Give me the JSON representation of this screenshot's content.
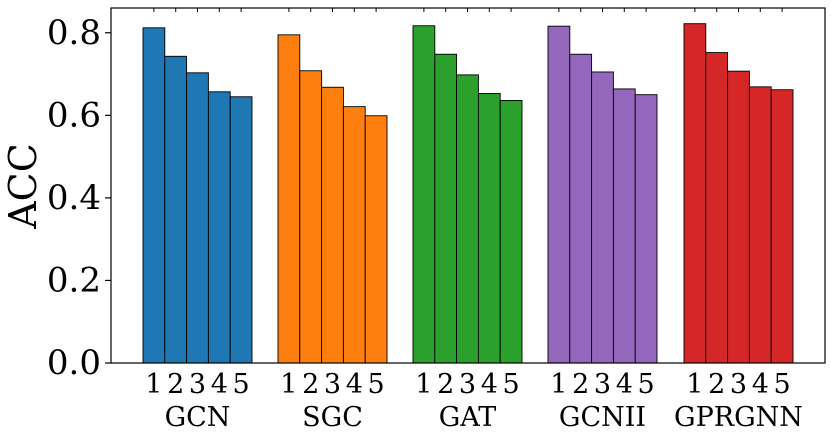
{
  "chart_data": {
    "type": "bar",
    "title": "",
    "ylabel": "ACC",
    "xlabel": "",
    "ylim": [
      0.0,
      0.86
    ],
    "yticks": [
      "0.0",
      "0.2",
      "0.4",
      "0.6",
      "0.8"
    ],
    "yticks_values": [
      0.0,
      0.2,
      0.4,
      0.6,
      0.8
    ],
    "groups": [
      {
        "name": "GCN",
        "color": "#1f77b4",
        "sub_labels": [
          "1",
          "2",
          "3",
          "4",
          "5"
        ],
        "values": [
          0.812,
          0.743,
          0.703,
          0.657,
          0.645
        ]
      },
      {
        "name": "SGC",
        "color": "#ff7f0e",
        "sub_labels": [
          "1",
          "2",
          "3",
          "4",
          "5"
        ],
        "values": [
          0.795,
          0.708,
          0.668,
          0.621,
          0.599
        ]
      },
      {
        "name": "GAT",
        "color": "#2ca02c",
        "sub_labels": [
          "1",
          "2",
          "3",
          "4",
          "5"
        ],
        "values": [
          0.817,
          0.748,
          0.698,
          0.653,
          0.636
        ]
      },
      {
        "name": "GCNII",
        "color": "#9467bd",
        "sub_labels": [
          "1",
          "2",
          "3",
          "4",
          "5"
        ],
        "values": [
          0.816,
          0.748,
          0.705,
          0.664,
          0.65
        ]
      },
      {
        "name": "GPRGNN",
        "color": "#d62728",
        "sub_labels": [
          "1",
          "2",
          "3",
          "4",
          "5"
        ],
        "values": [
          0.822,
          0.752,
          0.707,
          0.669,
          0.662
        ]
      }
    ]
  }
}
